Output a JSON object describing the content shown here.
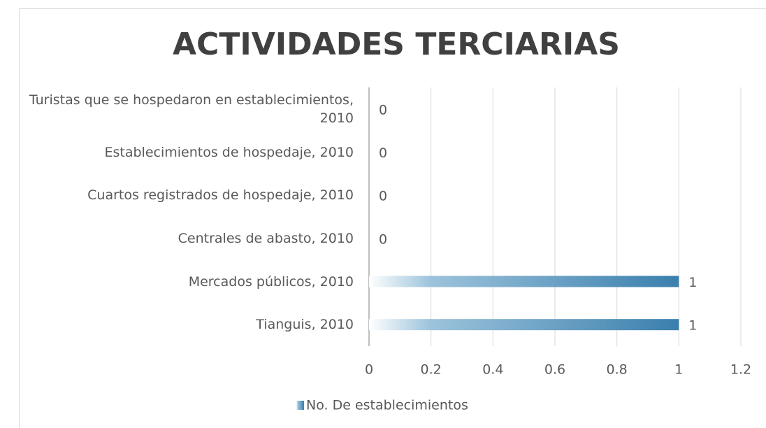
{
  "chart_data": {
    "type": "bar",
    "orientation": "horizontal",
    "title": "ACTIVIDADES TERCIARIAS",
    "categories": [
      "Turistas que se hospedaron en establecimientos, 2010",
      "Establecimientos de hospedaje, 2010",
      "Cuartos registrados de hospedaje, 2010",
      "Centrales de abasto, 2010",
      "Mercados públicos, 2010",
      "Tianguis, 2010"
    ],
    "series": [
      {
        "name": "No. De establecimientos",
        "color": "#3a7fad",
        "values": [
          0,
          0,
          0,
          0,
          1,
          1
        ]
      }
    ],
    "xlim": [
      0,
      1.2
    ],
    "xticks": [
      0,
      0.2,
      0.4,
      0.6,
      0.8,
      1,
      1.2
    ],
    "grid": true,
    "legend": "bottom"
  }
}
